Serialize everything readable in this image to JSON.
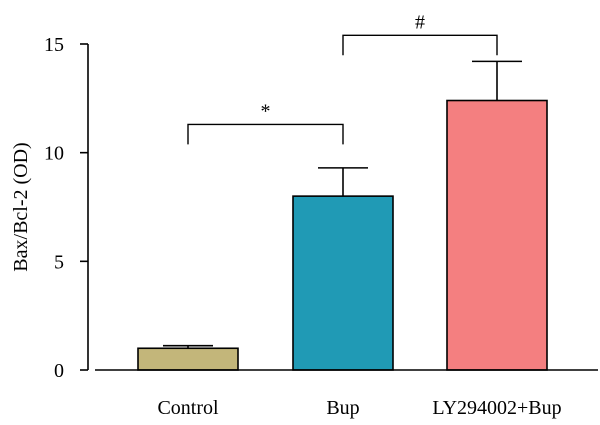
{
  "chart_data": {
    "type": "bar",
    "title": "",
    "xlabel": "",
    "ylabel": "Bax/Bcl-2 (OD)",
    "ylim": [
      0,
      15
    ],
    "yticks": [
      0,
      5,
      10,
      15
    ],
    "categories": [
      "Control",
      "Bup",
      "LY294002+Bup"
    ],
    "values": [
      1.0,
      8.0,
      12.4
    ],
    "errors": [
      0.12,
      1.3,
      1.8
    ],
    "colors": [
      "#C3B67A",
      "#209AB5",
      "#F47F80"
    ],
    "grid": false,
    "annotations": [
      {
        "from": "Control",
        "to": "Bup",
        "label": "*",
        "y": 11.3
      },
      {
        "from": "Bup",
        "to": "LY294002+Bup",
        "label": "#",
        "y": 15.4
      }
    ]
  }
}
